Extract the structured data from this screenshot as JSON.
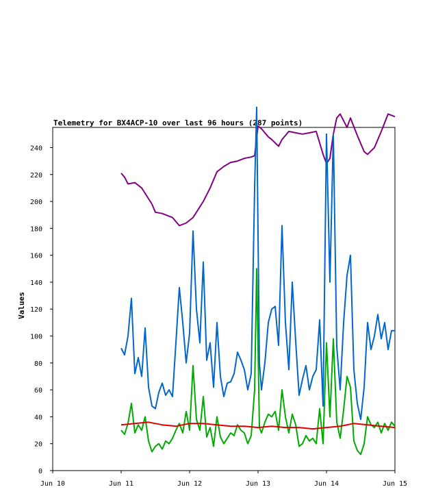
{
  "chart_data": {
    "type": "line",
    "title": "Telemetry for BX4ACP-10 over last 96 hours (287 points)",
    "ylabel": "Values",
    "xlabel": "",
    "ylim": [
      0,
      255
    ],
    "xlim": [
      "Jun 10",
      "Jun 15"
    ],
    "grid": false,
    "legend": "none",
    "x_ticks": [
      "Jun 10",
      "Jun 11",
      "Jun 12",
      "Jun 13",
      "Jun 14",
      "Jun 15"
    ],
    "y_ticks": [
      0,
      20,
      40,
      60,
      80,
      100,
      120,
      140,
      160,
      180,
      200,
      220,
      240
    ],
    "series": [
      {
        "color": "#800080",
        "x": [
          11.0,
          11.05,
          11.1,
          11.2,
          11.3,
          11.45,
          11.5,
          11.6,
          11.75,
          11.85,
          11.95,
          12.05,
          12.1,
          12.2,
          12.3,
          12.4,
          12.5,
          12.6,
          12.7,
          12.8,
          12.9,
          12.95,
          13.0,
          13.05,
          13.15,
          13.2,
          13.3,
          13.35,
          13.45,
          13.55,
          13.65,
          13.75,
          13.85,
          13.95,
          14.0,
          14.05,
          14.1,
          14.15,
          14.2,
          14.3,
          14.35,
          14.45,
          14.55,
          14.6,
          14.7,
          14.8,
          14.9,
          15.0
        ],
        "values": [
          221,
          218,
          213,
          214,
          210,
          198,
          192,
          191,
          188,
          182,
          184,
          188,
          192,
          200,
          210,
          222,
          226,
          229,
          230,
          232,
          233,
          234,
          256,
          254,
          248,
          246,
          241,
          246,
          252,
          251,
          250,
          251,
          252,
          235,
          228,
          232,
          250,
          262,
          265,
          255,
          262,
          249,
          237,
          235,
          240,
          252,
          265,
          263
        ]
      },
      {
        "color": "#0066cc",
        "x": [
          11.0,
          11.05,
          11.1,
          11.15,
          11.2,
          11.25,
          11.3,
          11.35,
          11.4,
          11.45,
          11.5,
          11.55,
          11.6,
          11.65,
          11.7,
          11.75,
          11.8,
          11.85,
          11.9,
          11.95,
          12.0,
          12.05,
          12.1,
          12.15,
          12.2,
          12.25,
          12.3,
          12.35,
          12.4,
          12.45,
          12.5,
          12.55,
          12.6,
          12.65,
          12.7,
          12.75,
          12.8,
          12.85,
          12.9,
          12.95,
          12.98,
          13.02,
          13.05,
          13.1,
          13.15,
          13.2,
          13.25,
          13.3,
          13.35,
          13.4,
          13.45,
          13.5,
          13.55,
          13.6,
          13.65,
          13.7,
          13.75,
          13.8,
          13.85,
          13.9,
          13.95,
          14.0,
          14.05,
          14.1,
          14.15,
          14.2,
          14.25,
          14.3,
          14.35,
          14.4,
          14.45,
          14.5,
          14.55,
          14.6,
          14.65,
          14.7,
          14.75,
          14.8,
          14.85,
          14.9,
          14.95,
          15.0
        ],
        "values": [
          91,
          86,
          100,
          128,
          72,
          84,
          70,
          106,
          62,
          48,
          46,
          58,
          65,
          56,
          60,
          55,
          95,
          136,
          110,
          80,
          102,
          178,
          120,
          95,
          155,
          82,
          95,
          62,
          110,
          70,
          55,
          65,
          66,
          72,
          88,
          82,
          75,
          60,
          72,
          210,
          270,
          80,
          60,
          80,
          110,
          120,
          122,
          93,
          182,
          110,
          75,
          140,
          96,
          56,
          68,
          78,
          60,
          70,
          75,
          112,
          48,
          250,
          140,
          250,
          92,
          60,
          110,
          145,
          160,
          75,
          50,
          38,
          62,
          110,
          90,
          100,
          116,
          98,
          110,
          90,
          104,
          104
        ]
      },
      {
        "color": "#00aa00",
        "x": [
          11.0,
          11.05,
          11.1,
          11.15,
          11.2,
          11.25,
          11.3,
          11.35,
          11.4,
          11.45,
          11.5,
          11.55,
          11.6,
          11.65,
          11.7,
          11.75,
          11.8,
          11.85,
          11.9,
          11.95,
          12.0,
          12.05,
          12.1,
          12.15,
          12.2,
          12.25,
          12.3,
          12.35,
          12.4,
          12.45,
          12.5,
          12.55,
          12.6,
          12.65,
          12.7,
          12.75,
          12.8,
          12.85,
          12.9,
          12.95,
          12.98,
          13.02,
          13.05,
          13.1,
          13.15,
          13.2,
          13.25,
          13.3,
          13.35,
          13.4,
          13.45,
          13.5,
          13.55,
          13.6,
          13.65,
          13.7,
          13.75,
          13.8,
          13.85,
          13.9,
          13.95,
          14.0,
          14.05,
          14.1,
          14.15,
          14.2,
          14.25,
          14.3,
          14.35,
          14.4,
          14.45,
          14.5,
          14.55,
          14.6,
          14.65,
          14.7,
          14.75,
          14.8,
          14.85,
          14.9,
          14.95,
          15.0
        ],
        "values": [
          30,
          27,
          35,
          50,
          28,
          34,
          30,
          40,
          22,
          14,
          18,
          20,
          16,
          22,
          20,
          24,
          30,
          35,
          28,
          44,
          30,
          78,
          38,
          30,
          55,
          25,
          32,
          18,
          40,
          25,
          20,
          24,
          28,
          26,
          34,
          30,
          28,
          20,
          26,
          60,
          150,
          32,
          28,
          36,
          42,
          40,
          44,
          30,
          60,
          40,
          28,
          42,
          34,
          18,
          20,
          26,
          22,
          24,
          20,
          46,
          20,
          95,
          40,
          98,
          36,
          24,
          45,
          70,
          62,
          22,
          15,
          12,
          20,
          40,
          34,
          32,
          36,
          28,
          35,
          30,
          36,
          33
        ]
      },
      {
        "color": "#dd0000",
        "x": [
          11.0,
          11.2,
          11.4,
          11.6,
          11.8,
          12.0,
          12.2,
          12.4,
          12.6,
          12.8,
          13.0,
          13.2,
          13.4,
          13.6,
          13.8,
          14.0,
          14.2,
          14.4,
          14.6,
          14.8,
          15.0
        ],
        "values": [
          34,
          35,
          36,
          34,
          33,
          35,
          35,
          34,
          33,
          33,
          32,
          33,
          32,
          32,
          31,
          32,
          33,
          35,
          34,
          33,
          32
        ]
      }
    ]
  }
}
